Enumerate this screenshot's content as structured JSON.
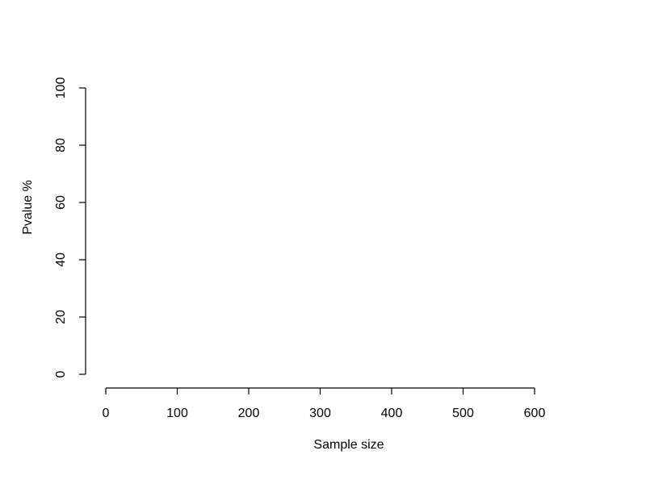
{
  "chart_data": {
    "type": "line",
    "title": "",
    "xlabel": "Sample size",
    "ylabel": "Pvalue %",
    "xlim": [
      0,
      600
    ],
    "ylim": [
      0,
      100
    ],
    "x_ticks": [
      0,
      100,
      200,
      300,
      400,
      500,
      600
    ],
    "y_ticks": [
      0,
      20,
      40,
      60,
      80,
      100
    ],
    "x_tick_labels": [
      "0",
      "100",
      "200",
      "300",
      "400",
      "500",
      "600"
    ],
    "y_tick_labels": [
      "0",
      "20",
      "40",
      "60",
      "80",
      "100"
    ],
    "series": [],
    "grid": false,
    "legend": "none",
    "colors": {
      "axis": "#000000",
      "background": "#ffffff"
    }
  }
}
